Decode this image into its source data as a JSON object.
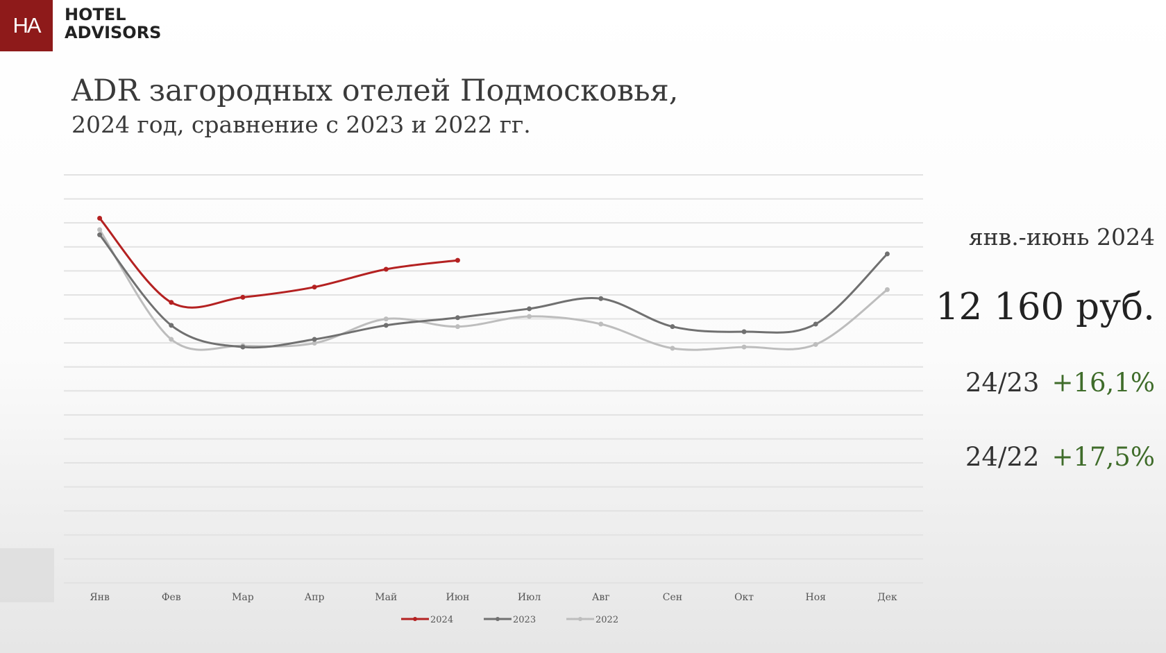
{
  "logo": {
    "mark": "HA",
    "line1": "HOTEL",
    "line2": "ADVISORS"
  },
  "header": {
    "title": "ADR загородных отелей Подмосковья,",
    "subtitle": "2024 год, сравнение с 2023 и 2022 гг."
  },
  "kpi": {
    "period": "янв.-июнь 2024",
    "value": "12 160 руб.",
    "comparisons": [
      {
        "label": "24/23",
        "change": "+16,1%"
      },
      {
        "label": "24/22",
        "change": "+17,5%"
      }
    ],
    "positive_color": "#3f6c2a"
  },
  "chart_data": {
    "type": "line",
    "categories": [
      "Янв",
      "Фев",
      "Мар",
      "Апр",
      "Май",
      "Июн",
      "Июл",
      "Авг",
      "Сен",
      "Окт",
      "Ноя",
      "Дек"
    ],
    "series": [
      {
        "name": "2024",
        "color": "#b42121",
        "values": [
          14300,
          11000,
          11200,
          11600,
          12300,
          12650,
          null,
          null,
          null,
          null,
          null,
          null
        ]
      },
      {
        "name": "2023",
        "color": "#707070",
        "values": [
          13650,
          10100,
          9250,
          9550,
          10100,
          10400,
          10750,
          11150,
          10050,
          9850,
          10150,
          12900
        ]
      },
      {
        "name": "2022",
        "color": "#bdbdbd",
        "values": [
          13850,
          9550,
          9300,
          9400,
          10350,
          10050,
          10450,
          10150,
          9200,
          9250,
          9350,
          11500
        ]
      }
    ],
    "ylim": [
      0,
      16000
    ],
    "grid": true,
    "y_tick_labels_visible": false,
    "legend": "bottom-center"
  }
}
